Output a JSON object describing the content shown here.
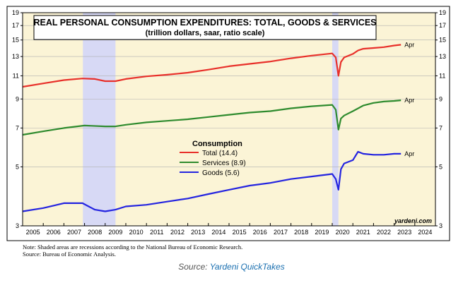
{
  "chart_data": {
    "type": "line",
    "title": "REAL PERSONAL CONSUMPTION EXPENDITURES: TOTAL, GOODS & SERVICES",
    "subtitle": "(trillion dollars, saar, ratio scale)",
    "y_scale": "log",
    "ylim": [
      3,
      19
    ],
    "y_ticks": [
      3,
      5,
      7,
      9,
      11,
      13,
      15,
      17,
      19
    ],
    "x_ticks": [
      "2005",
      "2006",
      "2007",
      "2008",
      "2009",
      "2010",
      "2011",
      "2012",
      "2013",
      "2014",
      "2015",
      "2016",
      "2017",
      "2018",
      "2019",
      "2020",
      "2021",
      "2022",
      "2023",
      "2024"
    ],
    "xlim": [
      2005.0,
      2025.0
    ],
    "recessions": [
      [
        2007.92,
        2009.5
      ],
      [
        2020.0,
        2020.3
      ]
    ],
    "legend_title": "Consumption",
    "legend_placement": "center-left",
    "series": [
      {
        "name": "Total (14.4)",
        "color": "#e8302a",
        "end_label": "Apr",
        "points": [
          [
            2005.0,
            10.0
          ],
          [
            2006.0,
            10.3
          ],
          [
            2007.0,
            10.6
          ],
          [
            2007.9,
            10.75
          ],
          [
            2008.5,
            10.7
          ],
          [
            2009.0,
            10.5
          ],
          [
            2009.5,
            10.5
          ],
          [
            2010.0,
            10.7
          ],
          [
            2011.0,
            10.95
          ],
          [
            2012.0,
            11.1
          ],
          [
            2013.0,
            11.3
          ],
          [
            2014.0,
            11.6
          ],
          [
            2015.0,
            11.95
          ],
          [
            2016.0,
            12.2
          ],
          [
            2017.0,
            12.45
          ],
          [
            2018.0,
            12.8
          ],
          [
            2019.0,
            13.1
          ],
          [
            2020.0,
            13.35
          ],
          [
            2020.17,
            12.9
          ],
          [
            2020.3,
            11.0
          ],
          [
            2020.42,
            12.4
          ],
          [
            2020.58,
            12.9
          ],
          [
            2021.0,
            13.3
          ],
          [
            2021.25,
            13.7
          ],
          [
            2021.5,
            13.9
          ],
          [
            2022.0,
            14.0
          ],
          [
            2022.5,
            14.1
          ],
          [
            2023.0,
            14.3
          ],
          [
            2023.33,
            14.4
          ]
        ]
      },
      {
        "name": "Services (8.9)",
        "color": "#2e8b2e",
        "end_label": "Apr",
        "points": [
          [
            2005.0,
            6.6
          ],
          [
            2006.0,
            6.8
          ],
          [
            2007.0,
            7.0
          ],
          [
            2008.0,
            7.15
          ],
          [
            2009.0,
            7.1
          ],
          [
            2009.5,
            7.1
          ],
          [
            2010.0,
            7.2
          ],
          [
            2011.0,
            7.35
          ],
          [
            2012.0,
            7.45
          ],
          [
            2013.0,
            7.55
          ],
          [
            2014.0,
            7.7
          ],
          [
            2015.0,
            7.85
          ],
          [
            2016.0,
            8.0
          ],
          [
            2017.0,
            8.1
          ],
          [
            2018.0,
            8.3
          ],
          [
            2019.0,
            8.45
          ],
          [
            2020.0,
            8.55
          ],
          [
            2020.17,
            8.2
          ],
          [
            2020.3,
            6.9
          ],
          [
            2020.42,
            7.6
          ],
          [
            2020.58,
            7.8
          ],
          [
            2021.0,
            8.1
          ],
          [
            2021.5,
            8.5
          ],
          [
            2022.0,
            8.7
          ],
          [
            2022.5,
            8.8
          ],
          [
            2023.0,
            8.85
          ],
          [
            2023.33,
            8.9
          ]
        ]
      },
      {
        "name": "Goods (5.6)",
        "color": "#2424e0",
        "end_label": "Apr",
        "points": [
          [
            2005.0,
            3.4
          ],
          [
            2006.0,
            3.5
          ],
          [
            2007.0,
            3.65
          ],
          [
            2007.9,
            3.65
          ],
          [
            2008.5,
            3.45
          ],
          [
            2009.0,
            3.4
          ],
          [
            2009.5,
            3.45
          ],
          [
            2010.0,
            3.55
          ],
          [
            2011.0,
            3.6
          ],
          [
            2012.0,
            3.7
          ],
          [
            2013.0,
            3.8
          ],
          [
            2014.0,
            3.95
          ],
          [
            2015.0,
            4.1
          ],
          [
            2016.0,
            4.25
          ],
          [
            2017.0,
            4.35
          ],
          [
            2018.0,
            4.5
          ],
          [
            2019.0,
            4.6
          ],
          [
            2020.0,
            4.7
          ],
          [
            2020.17,
            4.5
          ],
          [
            2020.3,
            4.1
          ],
          [
            2020.42,
            4.9
          ],
          [
            2020.58,
            5.15
          ],
          [
            2021.0,
            5.3
          ],
          [
            2021.25,
            5.7
          ],
          [
            2021.5,
            5.6
          ],
          [
            2022.0,
            5.55
          ],
          [
            2022.5,
            5.55
          ],
          [
            2023.0,
            5.6
          ],
          [
            2023.33,
            5.6
          ]
        ]
      }
    ]
  },
  "watermark": "yardeni.com",
  "notes": [
    "Note: Shaded areas are recessions according to the National Bureau of Economic Research.",
    "Source: Bureau of Economic Analysis."
  ],
  "caption": {
    "prefix": "Source: ",
    "source_name": "Yardeni QuickTakes"
  },
  "colors": {
    "plot_background": "#fbf4d6",
    "recession_shade": "#d7d9f5",
    "gridline": "#b0b0b0"
  }
}
